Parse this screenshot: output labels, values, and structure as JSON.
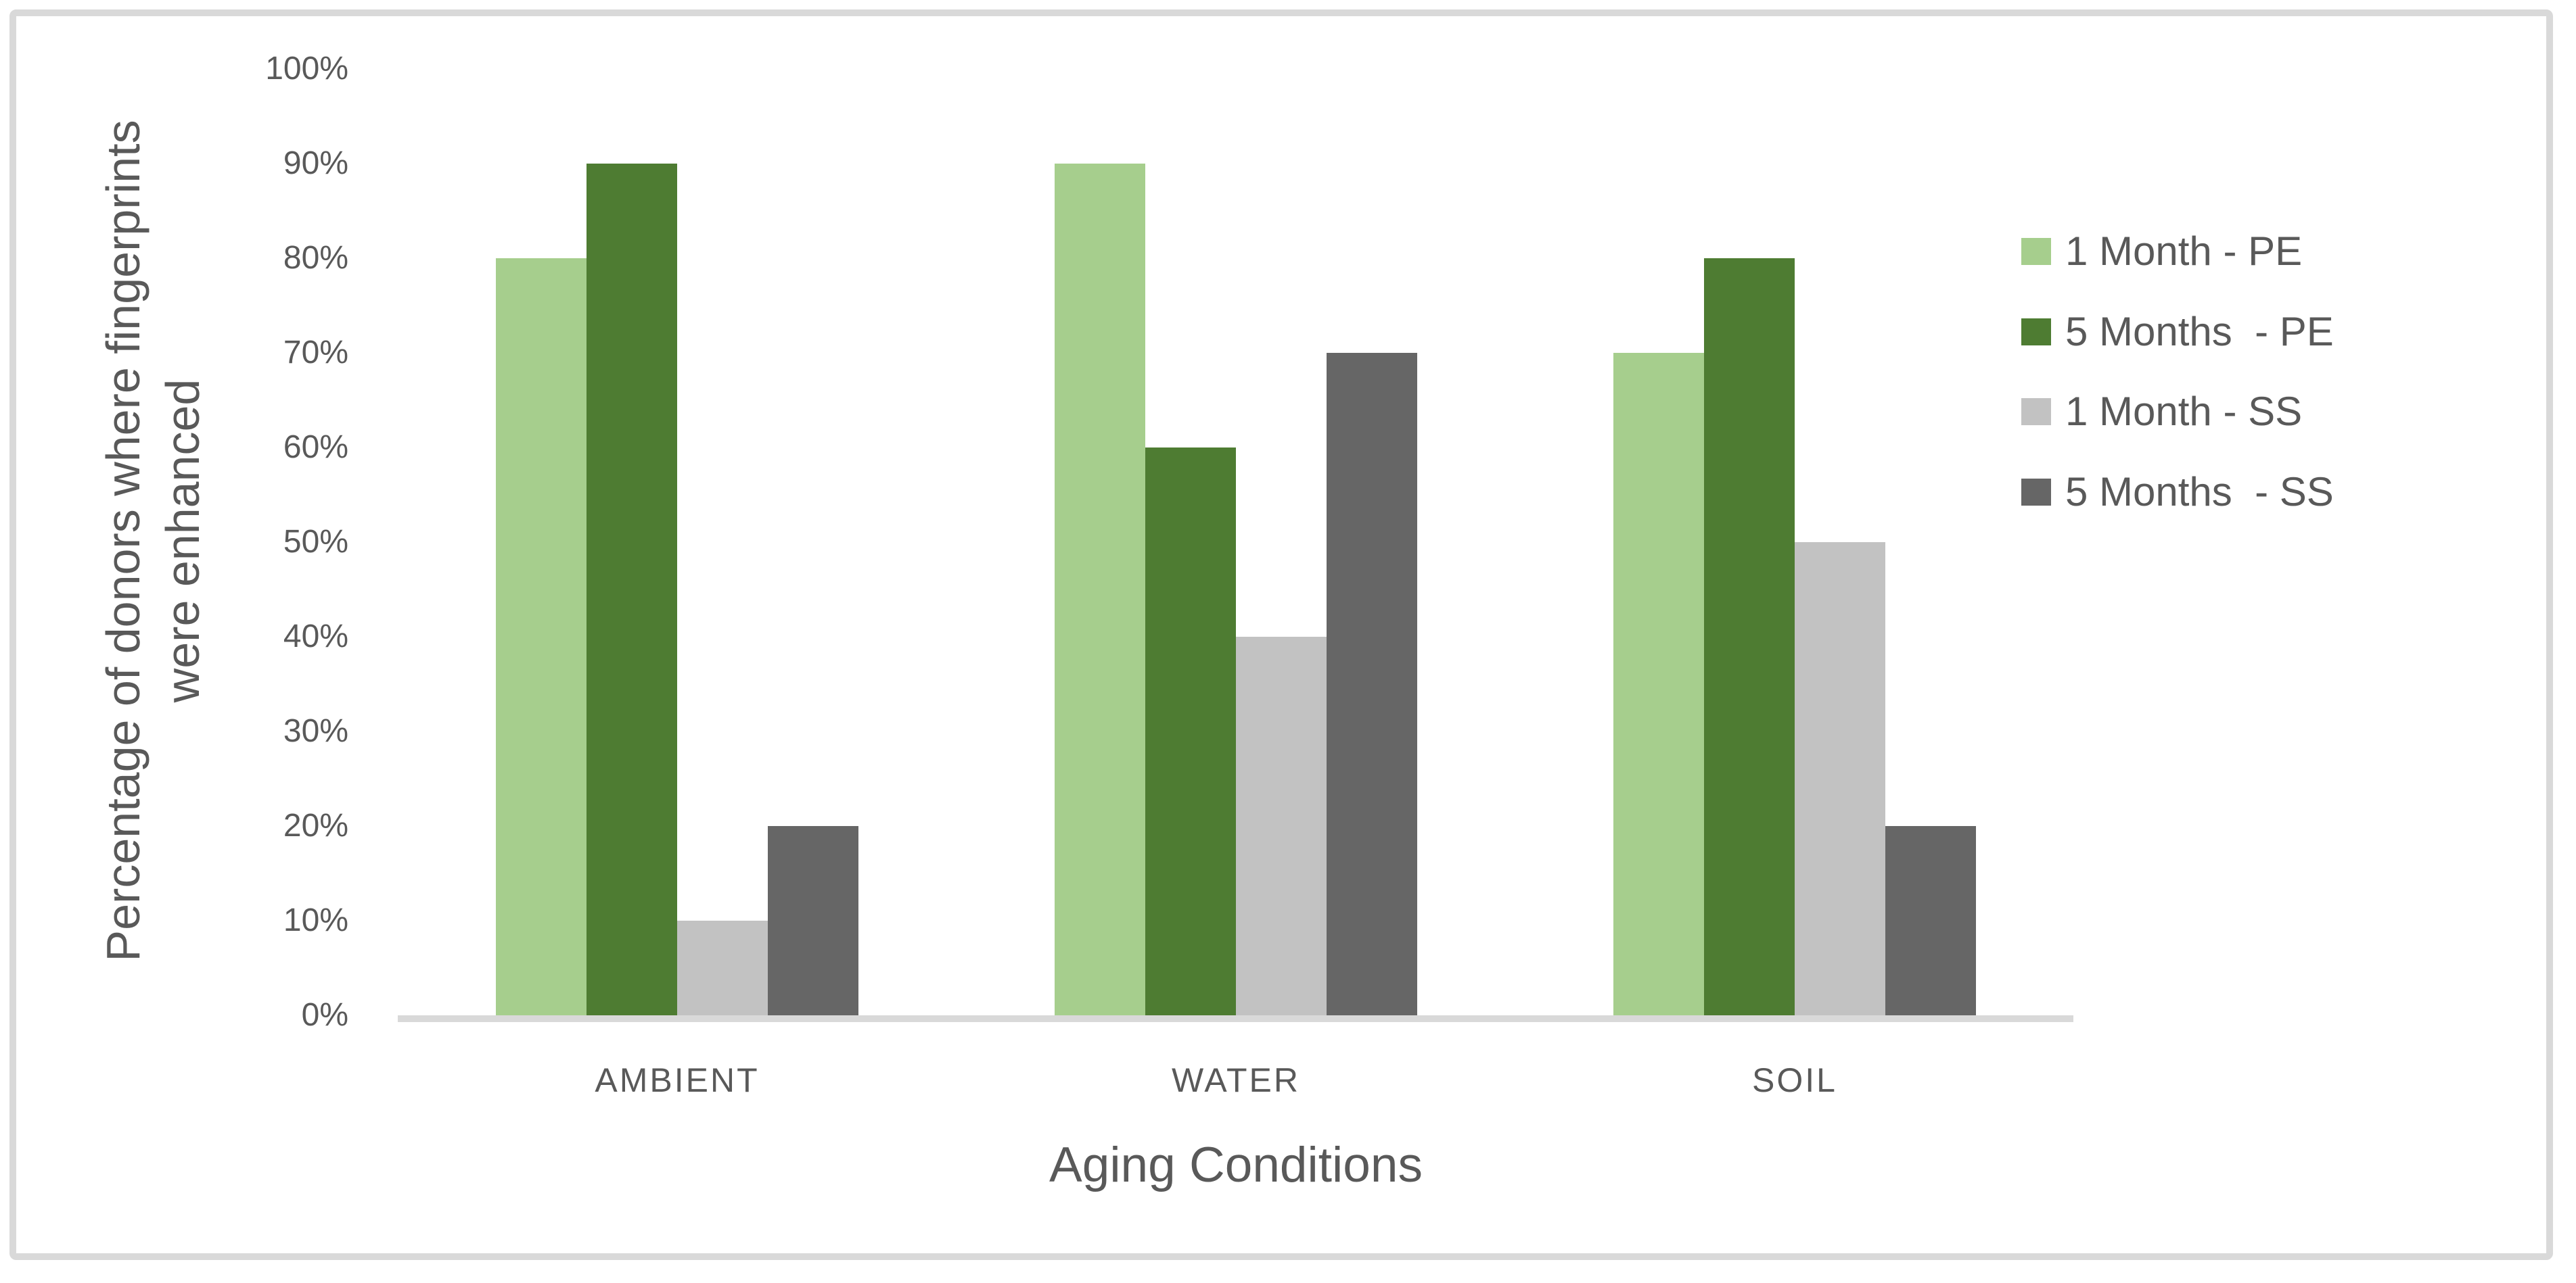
{
  "colors": {
    "light_green": "#A6CE8D",
    "dark_green": "#4E7C32",
    "light_gray": "#C2C2C2",
    "dark_gray": "#666666",
    "axis_line": "#D9D9D9",
    "frame_border": "#D9D9D9",
    "text": "#595959",
    "background": "#FFFFFF"
  },
  "chart_data": {
    "type": "bar",
    "title": "",
    "xlabel": "Aging Conditions",
    "ylabel": "Percentage of donors where fingerprints\nwere enhanced",
    "categories": [
      "AMBIENT",
      "WATER",
      "SOIL"
    ],
    "series": [
      {
        "name": "1 Month - PE",
        "color_key": "light_green",
        "values": [
          80,
          90,
          70
        ]
      },
      {
        "name": "5 Months  - PE",
        "color_key": "dark_green",
        "values": [
          90,
          60,
          80
        ]
      },
      {
        "name": "1 Month - SS",
        "color_key": "light_gray",
        "values": [
          10,
          40,
          50
        ]
      },
      {
        "name": "5 Months  - SS",
        "color_key": "dark_gray",
        "values": [
          20,
          70,
          20
        ]
      }
    ],
    "ylim": [
      0,
      100
    ],
    "y_tick_step": 10,
    "y_tick_labels": [
      "0%",
      "10%",
      "20%",
      "30%",
      "40%",
      "50%",
      "60%",
      "70%",
      "80%",
      "90%",
      "100%"
    ],
    "y_tick_format": "percent",
    "gridlines": false,
    "legend_position": "right"
  }
}
